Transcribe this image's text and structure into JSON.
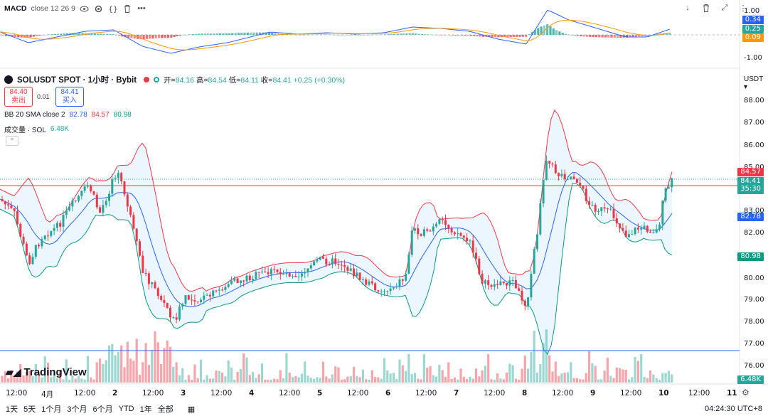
{
  "macd": {
    "label": "MACD",
    "params": "close 12 26 9",
    "axis": [
      "1.00",
      "0.00",
      "-1.00"
    ],
    "tags": {
      "macd": "0.34",
      "signal": "0.25",
      "hist": "0.09"
    },
    "colors": {
      "macd": "#2962ff",
      "signal": "#ff9800",
      "hist_up": "#26a69a",
      "hist_down": "#f23645"
    }
  },
  "header": {
    "symbol": "SOLUSDT SPOT · 1小时 · Bybit",
    "open_label": "开=",
    "open": "84.16",
    "high_label": "高=",
    "high": "84.54",
    "low_label": "低=",
    "low": "84.11",
    "close_label": "收=",
    "close": "84.41",
    "change": "+0.25 (+0.30%)",
    "currency": "USDT"
  },
  "trade": {
    "sell_price": "84.40",
    "sell_label": "卖出",
    "spread": "0.01",
    "buy_price": "84.41",
    "buy_label": "买入"
  },
  "bb": {
    "label": "BB 20 SMA close 2",
    "basis": "82.78",
    "upper": "84.57",
    "lower": "80.98"
  },
  "volume": {
    "label": "成交量 · SOL",
    "value": "6.48K"
  },
  "price_axis": [
    "88.00",
    "87.00",
    "86.00",
    "85.00",
    "83.00",
    "82.00",
    "81.00",
    "80.00",
    "79.00",
    "78.00",
    "77.00",
    "76.00"
  ],
  "price_tags": {
    "upper": "84.57",
    "last": "84.41",
    "countdown": "35:30",
    "basis": "82.78",
    "lower": "80.98",
    "volume": "6.48K"
  },
  "time_axis": [
    "12:00",
    "4月",
    "12:00",
    "2",
    "12:00",
    "3",
    "12:00",
    "4",
    "12:00",
    "5",
    "12:00",
    "6",
    "12:00",
    "7",
    "12:00",
    "8",
    "12:00",
    "9",
    "12:00",
    "10",
    "12:00",
    "11"
  ],
  "ranges": [
    "1天",
    "5天",
    "1个月",
    "3个月",
    "6个月",
    "YTD",
    "1年",
    "全部"
  ],
  "clock": "04:24:30 UTC+8",
  "logo": "TradingView",
  "colors": {
    "up": "#26a69a",
    "down": "#f23645",
    "bb_upper": "#f23645",
    "bb_basis": "#2962ff",
    "bb_lower": "#089981",
    "fill": "#e3f2fd"
  }
}
